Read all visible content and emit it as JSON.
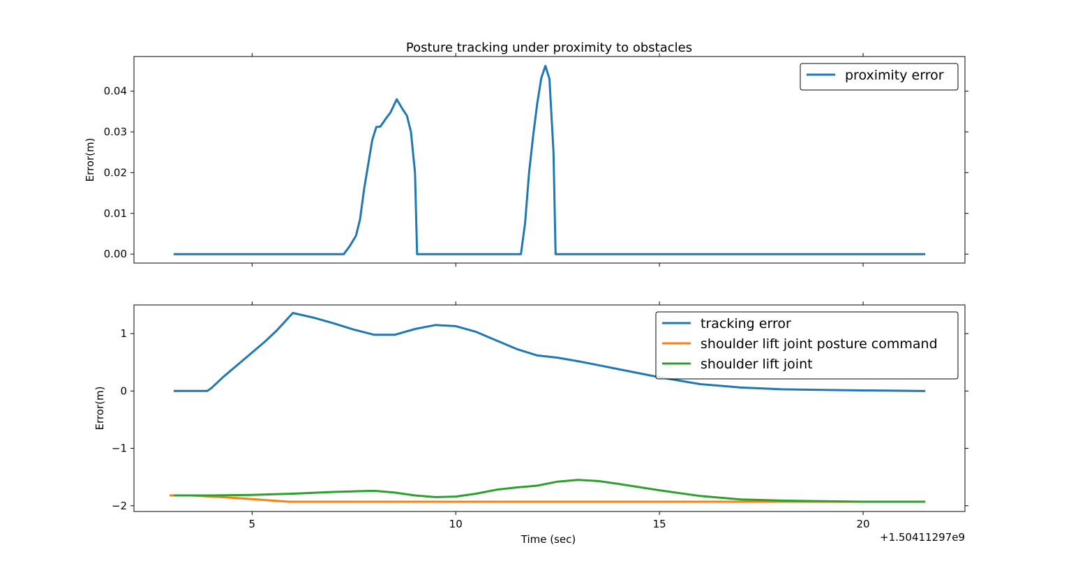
{
  "figure": {
    "title": "Posture tracking under proximity to obstacles",
    "xlabel": "Time (sec)",
    "x_offset_label": "+1.50411297e9"
  },
  "chart_data": [
    {
      "type": "line",
      "title": "Posture tracking under proximity to obstacles",
      "xlabel": "",
      "ylabel": "Error(m)",
      "xlim": [
        2.1,
        22.5
      ],
      "ylim": [
        -0.0022,
        0.0485
      ],
      "xticks": [
        5,
        10,
        15,
        20
      ],
      "xtick_labels": [
        "",
        "",
        "",
        ""
      ],
      "yticks": [
        0.0,
        0.01,
        0.02,
        0.03,
        0.04
      ],
      "ytick_labels": [
        "0.00",
        "0.01",
        "0.02",
        "0.03",
        "0.04"
      ],
      "grid": false,
      "legend": "top-right",
      "series": [
        {
          "name": "proximity error",
          "color": "#1f77b4",
          "x": [
            3.1,
            7.25,
            7.4,
            7.55,
            7.65,
            7.75,
            7.85,
            7.95,
            8.05,
            8.15,
            8.3,
            8.4,
            8.55,
            8.7,
            8.8,
            8.9,
            9.0,
            9.05,
            11.6,
            11.7,
            11.8,
            11.9,
            12.0,
            12.1,
            12.2,
            12.3,
            12.4,
            12.45,
            21.5
          ],
          "y": [
            0.0,
            0.0,
            0.002,
            0.0045,
            0.0085,
            0.016,
            0.022,
            0.028,
            0.0312,
            0.0313,
            0.0335,
            0.0348,
            0.038,
            0.0355,
            0.034,
            0.03,
            0.02,
            0.0,
            0.0,
            0.0075,
            0.02,
            0.029,
            0.037,
            0.0432,
            0.0462,
            0.043,
            0.025,
            0.0,
            0.0
          ]
        }
      ]
    },
    {
      "type": "line",
      "title": "",
      "xlabel": "Time (sec)",
      "ylabel": "Error(m)",
      "xlim": [
        2.1,
        22.5
      ],
      "ylim": [
        -2.1,
        1.5
      ],
      "xticks": [
        5,
        10,
        15,
        20
      ],
      "xtick_labels": [
        "5",
        "10",
        "15",
        "20"
      ],
      "yticks": [
        -2,
        -1,
        0,
        1
      ],
      "ytick_labels": [
        "−2",
        "−1",
        "0",
        "1"
      ],
      "grid": false,
      "legend": "top-right",
      "series": [
        {
          "name": "tracking error",
          "color": "#1f77b4",
          "x": [
            3.1,
            3.9,
            4.0,
            4.3,
            4.8,
            5.3,
            5.6,
            6.0,
            6.5,
            7.0,
            7.5,
            8.0,
            8.5,
            9.0,
            9.5,
            10.0,
            10.5,
            11.0,
            11.5,
            12.0,
            12.5,
            13.0,
            13.5,
            14.0,
            15.0,
            16.0,
            17.0,
            18.0,
            19.0,
            20.0,
            21.5
          ],
          "y": [
            0.0,
            0.0,
            0.05,
            0.25,
            0.55,
            0.85,
            1.05,
            1.36,
            1.28,
            1.18,
            1.07,
            0.98,
            0.98,
            1.08,
            1.15,
            1.13,
            1.03,
            0.88,
            0.73,
            0.62,
            0.58,
            0.52,
            0.45,
            0.38,
            0.24,
            0.12,
            0.06,
            0.03,
            0.02,
            0.01,
            0.0
          ]
        },
        {
          "name": "shoulder lift joint posture command",
          "color": "#ff7f0e",
          "x": [
            3.0,
            3.5,
            4.5,
            5.5,
            5.9,
            10.0,
            15.0,
            21.5
          ],
          "y": [
            -1.82,
            -1.82,
            -1.86,
            -1.91,
            -1.93,
            -1.93,
            -1.93,
            -1.93
          ]
        },
        {
          "name": "shoulder lift joint",
          "color": "#2ca02c",
          "x": [
            3.1,
            4.0,
            5.0,
            6.0,
            7.0,
            8.0,
            8.5,
            9.0,
            9.5,
            10.0,
            10.5,
            11.0,
            11.5,
            12.0,
            12.5,
            13.0,
            13.5,
            14.0,
            15.0,
            16.0,
            17.0,
            18.0,
            19.0,
            20.0,
            21.5
          ],
          "y": [
            -1.82,
            -1.82,
            -1.81,
            -1.79,
            -1.76,
            -1.74,
            -1.77,
            -1.82,
            -1.85,
            -1.84,
            -1.79,
            -1.72,
            -1.68,
            -1.65,
            -1.58,
            -1.55,
            -1.57,
            -1.62,
            -1.73,
            -1.83,
            -1.89,
            -1.91,
            -1.92,
            -1.93,
            -1.93
          ]
        }
      ]
    }
  ]
}
